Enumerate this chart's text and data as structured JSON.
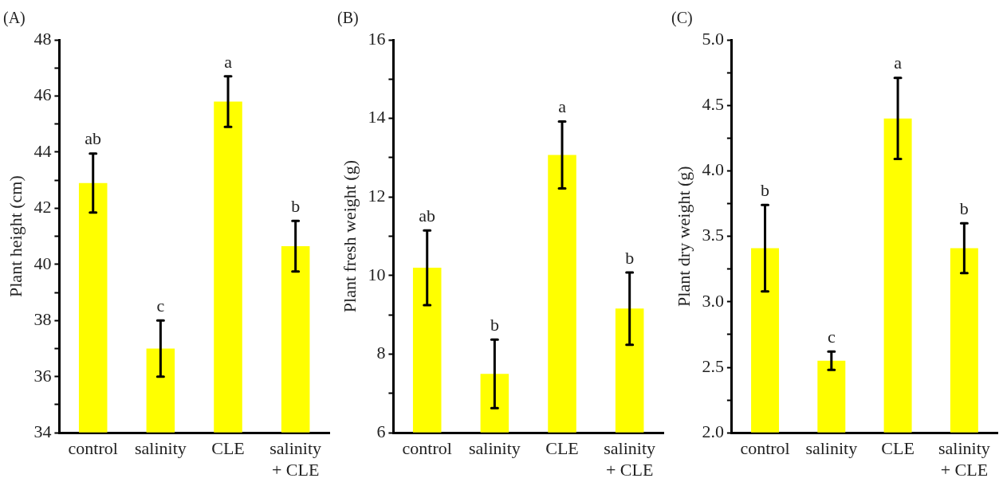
{
  "chart_data": [
    {
      "type": "bar",
      "title": "(A)",
      "ylabel": "Plant height (cm)",
      "categories": [
        "control",
        "salinity",
        "CLE",
        "salinity + CLE"
      ],
      "values": [
        42.9,
        37.0,
        45.8,
        40.65
      ],
      "errors": [
        1.05,
        1.0,
        0.9,
        0.9
      ],
      "color": "#ffff00",
      "ylim": [
        34,
        48
      ],
      "yticks": [
        34,
        {
          "value": 35,
          "label": null
        },
        36,
        {
          "value": 37,
          "label": null
        },
        38,
        {
          "value": 39,
          "label": null
        },
        40,
        {
          "value": 41,
          "label": null
        },
        42,
        {
          "value": 43,
          "label": null
        },
        44,
        {
          "value": 45,
          "label": null
        },
        46,
        {
          "value": 47,
          "label": null
        },
        48
      ],
      "annotations": [
        {
          "text": "ab",
          "x": "control",
          "y": 43.95
        },
        {
          "text": "c",
          "x": "salinity",
          "y": 38.0
        },
        {
          "text": "a",
          "x": "CLE",
          "y": 46.7
        },
        {
          "text": "b",
          "x": "salinity + CLE",
          "y": 41.55
        }
      ]
    },
    {
      "type": "bar",
      "title": "(B)",
      "ylabel": "Plant fresh weight (g)",
      "categories": [
        "control",
        "salinity",
        "CLE",
        "salinity + CLE"
      ],
      "values": [
        10.2,
        7.5,
        13.07,
        9.16
      ],
      "errors": [
        0.95,
        0.87,
        0.85,
        0.92
      ],
      "color": "#ffff00",
      "ylim": [
        6,
        16
      ],
      "yticks": [
        6,
        {
          "value": 7,
          "label": null
        },
        8,
        {
          "value": 9,
          "label": null
        },
        10,
        {
          "value": 11,
          "label": null
        },
        12,
        {
          "value": 13,
          "label": null
        },
        14,
        {
          "value": 15,
          "label": null
        },
        16
      ],
      "annotations": [
        {
          "text": "ab",
          "x": "control",
          "y": 11.15
        },
        {
          "text": "b",
          "x": "salinity",
          "y": 8.37
        },
        {
          "text": "a",
          "x": "CLE",
          "y": 13.92
        },
        {
          "text": "b",
          "x": "salinity + CLE",
          "y": 10.08
        }
      ]
    },
    {
      "type": "bar",
      "title": "(C)",
      "ylabel": "Plant dry weight (g)",
      "categories": [
        "control",
        "salinity",
        "CLE",
        "salinity + CLE"
      ],
      "values": [
        3.41,
        2.55,
        4.4,
        3.41
      ],
      "errors": [
        0.33,
        0.07,
        0.31,
        0.19
      ],
      "color": "#ffff00",
      "ylim": [
        2.0,
        5.0
      ],
      "yticks": [
        {
          "value": 2.0,
          "label": "2.0"
        },
        {
          "value": 2.25,
          "label": null
        },
        {
          "value": 2.5,
          "label": "2.5"
        },
        {
          "value": 2.75,
          "label": null
        },
        {
          "value": 3.0,
          "label": "3.0"
        },
        {
          "value": 3.25,
          "label": null
        },
        {
          "value": 3.5,
          "label": "3.5"
        },
        {
          "value": 3.75,
          "label": null
        },
        {
          "value": 4.0,
          "label": "4.0"
        },
        {
          "value": 4.25,
          "label": null
        },
        {
          "value": 4.5,
          "label": "4.5"
        },
        {
          "value": 4.75,
          "label": null
        },
        {
          "value": 5.0,
          "label": "5.0"
        }
      ],
      "annotations": [
        {
          "text": "b",
          "x": "control",
          "y": 3.74
        },
        {
          "text": "c",
          "x": "salinity",
          "y": 2.62
        },
        {
          "text": "a",
          "x": "CLE",
          "y": 4.71
        },
        {
          "text": "b",
          "x": "salinity + CLE",
          "y": 3.6
        }
      ]
    }
  ]
}
